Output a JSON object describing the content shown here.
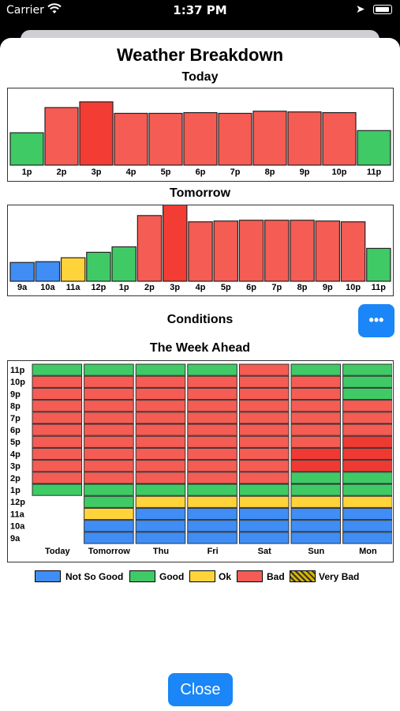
{
  "status_bar": {
    "carrier": "Carrier",
    "time": "1:37 PM"
  },
  "title": "Weather Breakdown",
  "today": {
    "heading": "Today",
    "hours": [
      "1p",
      "2p",
      "3p",
      "4p",
      "5p",
      "6p",
      "7p",
      "8p",
      "9p",
      "10p",
      "11p"
    ],
    "values": [
      45,
      80,
      88,
      72,
      72,
      73,
      72,
      75,
      74,
      73,
      48
    ],
    "conditions": [
      "Good",
      "Bad",
      "Bad",
      "Bad",
      "Bad",
      "Bad",
      "Bad",
      "Bad",
      "Bad",
      "Bad",
      "Good"
    ]
  },
  "tomorrow": {
    "heading": "Tomorrow",
    "hours": [
      "9a",
      "10a",
      "11a",
      "12p",
      "1p",
      "2p",
      "3p",
      "4p",
      "5p",
      "6p",
      "7p",
      "8p",
      "9p",
      "10p",
      "11p"
    ],
    "values": [
      24,
      25,
      30,
      37,
      44,
      84,
      99,
      76,
      77,
      78,
      78,
      78,
      77,
      76,
      42
    ],
    "conditions": [
      "Not So Good",
      "Not So Good",
      "Ok",
      "Good",
      "Good",
      "Bad",
      "Bad",
      "Bad",
      "Bad",
      "Bad",
      "Bad",
      "Bad",
      "Bad",
      "Bad",
      "Good"
    ]
  },
  "conditions_label": "Conditions",
  "more_button": "•••",
  "week": {
    "heading": "The Week Ahead",
    "hours": [
      "11p",
      "10p",
      "9p",
      "8p",
      "7p",
      "6p",
      "5p",
      "4p",
      "3p",
      "2p",
      "1p",
      "12p",
      "11a",
      "10a",
      "9a"
    ],
    "days": [
      {
        "name": "Today",
        "cells": [
          "Good",
          "Bad",
          "Bad",
          "Bad",
          "Bad",
          "Bad",
          "Bad",
          "Bad",
          "Bad",
          "Bad",
          "Good",
          "",
          "",
          "",
          ""
        ]
      },
      {
        "name": "Tomorrow",
        "cells": [
          "Good",
          "Bad",
          "Bad",
          "Bad",
          "Bad",
          "Bad",
          "Bad",
          "Bad",
          "Bad",
          "Bad",
          "Good",
          "Good",
          "Ok",
          "Not So Good",
          "Not So Good"
        ]
      },
      {
        "name": "Thu",
        "cells": [
          "Good",
          "Bad",
          "Bad",
          "Bad",
          "Bad",
          "Bad",
          "Bad",
          "Bad",
          "Bad",
          "Bad",
          "Good",
          "Ok",
          "Not So Good",
          "Not So Good",
          "Not So Good"
        ]
      },
      {
        "name": "Fri",
        "cells": [
          "Good",
          "Bad",
          "Bad",
          "Bad",
          "Bad",
          "Bad",
          "Bad",
          "Bad",
          "Bad",
          "Bad",
          "Good",
          "Ok",
          "Not So Good",
          "Not So Good",
          "Not So Good"
        ]
      },
      {
        "name": "Sat",
        "cells": [
          "Bad",
          "Bad",
          "Bad",
          "Bad",
          "Bad",
          "Bad",
          "Bad",
          "Bad",
          "Bad",
          "Bad",
          "Good",
          "Ok",
          "Not So Good",
          "Not So Good",
          "Not So Good"
        ]
      },
      {
        "name": "Sun",
        "cells": [
          "Good",
          "Bad",
          "Bad",
          "Bad",
          "Bad",
          "Bad",
          "Bad",
          "Bad",
          "Bad",
          "Good",
          "Good",
          "Ok",
          "Not So Good",
          "Not So Good",
          "Not So Good"
        ]
      },
      {
        "name": "Mon",
        "cells": [
          "Good",
          "Good",
          "Good",
          "Bad",
          "Bad",
          "Bad",
          "Bad",
          "Bad",
          "Bad",
          "Good",
          "Good",
          "Ok",
          "Not So Good",
          "Not So Good",
          "Not So Good"
        ]
      }
    ]
  },
  "legend": [
    {
      "label": "Not So Good",
      "color": "#3f8df5"
    },
    {
      "label": "Good",
      "color": "#3fca66"
    },
    {
      "label": "Ok",
      "color": "#ffd43a"
    },
    {
      "label": "Bad",
      "color": "#f55c54"
    },
    {
      "label": "Very Bad",
      "color": "#d8b400"
    }
  ],
  "colors": {
    "Good": "#3fca66",
    "Bad": "#f55c54",
    "Ok": "#ffd43a",
    "Not So Good": "#3f8df5",
    "accent": "#1a86f7"
  },
  "close_button": "Close"
}
